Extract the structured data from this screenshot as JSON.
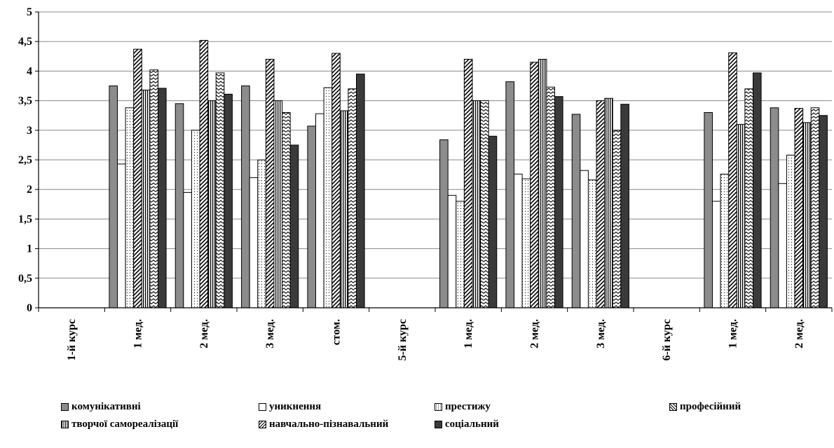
{
  "chart_data": {
    "type": "bar",
    "ylim": [
      0,
      5
    ],
    "yticks": [
      "0",
      "0,5",
      "1",
      "1,5",
      "2",
      "2,5",
      "3",
      "3,5",
      "4",
      "4,5",
      "5"
    ],
    "grid": true,
    "legend_position": "bottom",
    "categories": [
      "1-й курс",
      "1 мед.",
      "2 мед.",
      "3 мед.",
      "стом.",
      "5-й курс",
      "1 мед.",
      "2 мед.",
      "3 мед.",
      "6-й курс",
      "1 мед.",
      "2 мед."
    ],
    "series": [
      {
        "name": "комунікативні",
        "fill": "#8c8c8c",
        "pattern": "solid",
        "values": [
          null,
          3.75,
          3.45,
          3.75,
          3.07,
          null,
          2.84,
          3.82,
          3.27,
          null,
          3.3,
          3.38
        ]
      },
      {
        "name": "уникнення",
        "fill": "#ffffff",
        "pattern": "plain",
        "values": [
          null,
          2.43,
          1.95,
          2.2,
          3.28,
          null,
          1.9,
          2.26,
          2.32,
          null,
          1.8,
          2.1
        ]
      },
      {
        "name": "престижу",
        "fill": "#ffffff",
        "pattern": "dots",
        "values": [
          null,
          3.38,
          3.0,
          2.5,
          3.72,
          null,
          1.8,
          2.18,
          2.16,
          null,
          2.26,
          2.58
        ]
      },
      {
        "name": "професійний",
        "fill": "#ffffff",
        "pattern": "diagonal",
        "values": [
          null,
          4.37,
          4.52,
          4.2,
          4.3,
          null,
          4.2,
          4.15,
          3.5,
          null,
          4.31,
          3.37
        ]
      },
      {
        "name": "творчої самореалізації",
        "fill": "#ffffff",
        "pattern": "vertical",
        "values": [
          null,
          3.68,
          3.5,
          3.5,
          3.33,
          null,
          3.5,
          4.2,
          3.54,
          null,
          3.1,
          3.13
        ]
      },
      {
        "name": "навчально-пізнавальний",
        "fill": "#ffffff",
        "pattern": "wave",
        "values": [
          null,
          4.02,
          3.97,
          3.3,
          3.7,
          null,
          3.5,
          3.73,
          3.0,
          null,
          3.7,
          3.38
        ]
      },
      {
        "name": "соціальний",
        "fill": "#3a3a3a",
        "pattern": "solid",
        "values": [
          null,
          3.71,
          3.61,
          2.75,
          3.95,
          null,
          2.9,
          3.57,
          3.44,
          null,
          3.97,
          3.25
        ]
      }
    ]
  }
}
